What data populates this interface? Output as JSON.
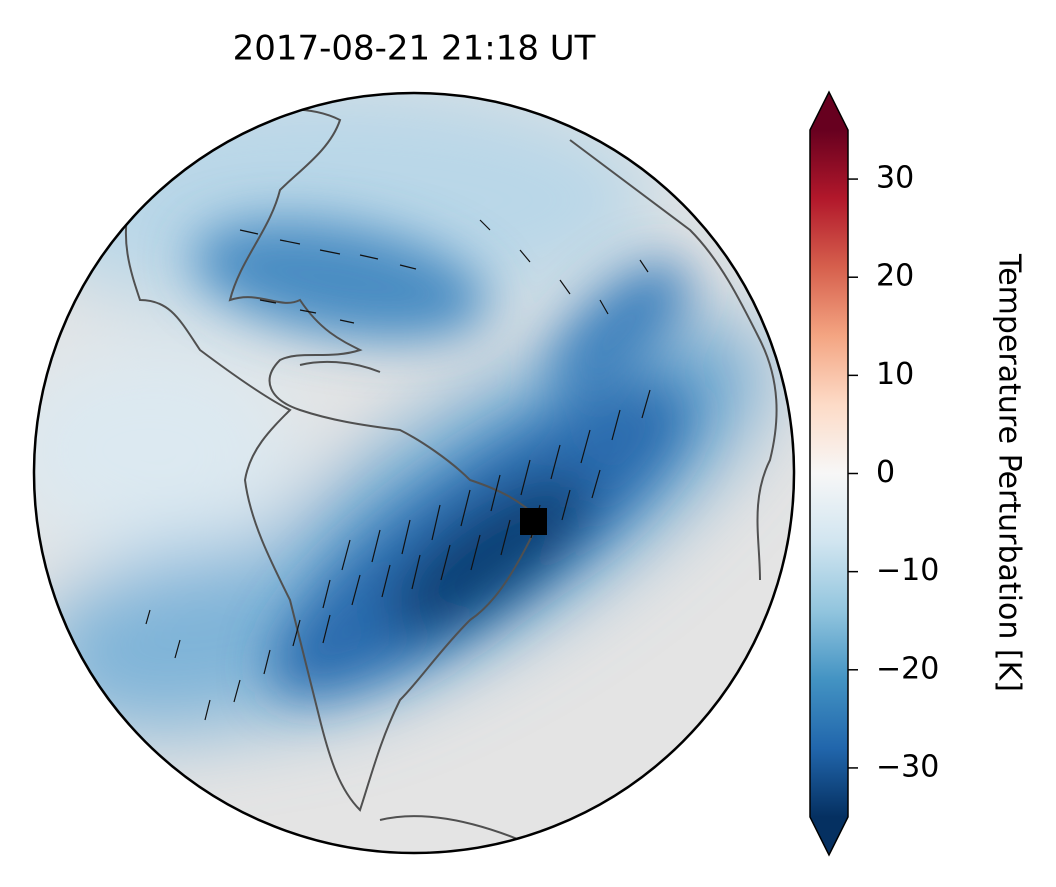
{
  "chart_data": {
    "type": "map",
    "title": "2017-08-21  21:18 UT",
    "colorbar": {
      "label": "Temperature Perturbation [K]",
      "lim": [
        -35,
        35
      ],
      "ticks": [
        {
          "value": -30,
          "label": "−30"
        },
        {
          "value": -20,
          "label": "−20"
        },
        {
          "value": -10,
          "label": "−10"
        },
        0,
        10,
        20,
        30
      ],
      "colormap": [
        "#053061",
        "#2166ac",
        "#4393c3",
        "#92c5de",
        "#d1e5f0",
        "#f7f7f7",
        "#fddbc7",
        "#f4a582",
        "#d6604d",
        "#b2182b",
        "#67001f"
      ],
      "extend": "both"
    }
  }
}
